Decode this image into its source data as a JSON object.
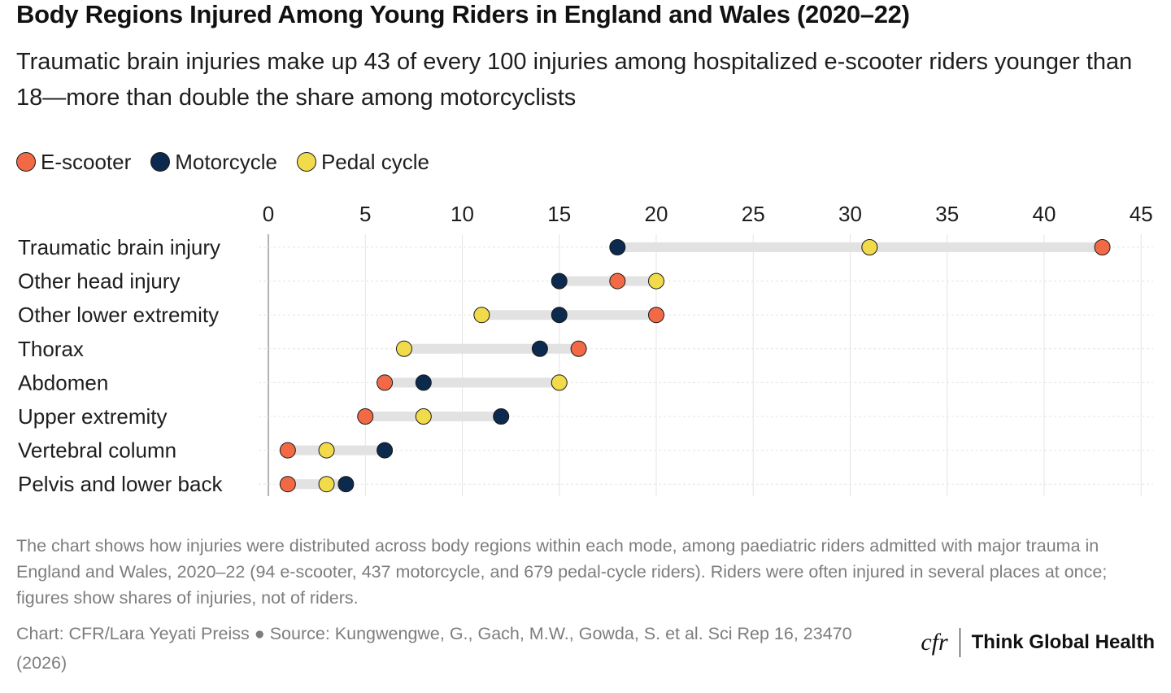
{
  "header": {
    "title": "Body Regions Injured Among Young Riders in England and Wales (2020–22)",
    "subtitle": "Traumatic brain injuries make up 43 of every 100 injuries among hospitalized e-scooter riders younger than 18—more than double the share among motorcyclists"
  },
  "colors": {
    "e_scooter": "#f26a45",
    "motorcycle": "#0c2a4d",
    "pedal_cycle": "#f1db4b",
    "range_bar": "#e2e2e2",
    "grid": "#e4e4e4",
    "axis": "#9a9a9a"
  },
  "legend": [
    {
      "key": "e_scooter",
      "label": "E-scooter"
    },
    {
      "key": "motorcycle",
      "label": "Motorcycle"
    },
    {
      "key": "pedal_cycle",
      "label": "Pedal cycle"
    }
  ],
  "chart_data": {
    "type": "scatter",
    "subtype": "dot-range",
    "orientation": "horizontal",
    "categories": [
      "Traumatic brain injury",
      "Other head injury",
      "Other lower extremity",
      "Thorax",
      "Abdomen",
      "Upper extremity",
      "Vertebral column",
      "Pelvis and lower back"
    ],
    "series": [
      {
        "key": "e_scooter",
        "name": "E-scooter",
        "values": [
          43,
          18,
          20,
          16,
          6,
          5,
          1,
          1
        ]
      },
      {
        "key": "motorcycle",
        "name": "Motorcycle",
        "values": [
          18,
          15,
          15,
          14,
          8,
          12,
          6,
          4
        ]
      },
      {
        "key": "pedal_cycle",
        "name": "Pedal cycle",
        "values": [
          31,
          20,
          11,
          7,
          15,
          8,
          3,
          3
        ]
      }
    ],
    "xlim": [
      0,
      45
    ],
    "xticks": [
      0,
      5,
      10,
      15,
      20,
      25,
      30,
      35,
      40,
      45
    ],
    "x_axis_position": "top",
    "grid": true,
    "legend_position": "top-left"
  },
  "footer": {
    "note": "The chart shows how injuries were distributed across body regions within each mode, among paediatric riders admitted with major trauma in England and Wales, 2020–22 (94 e-scooter, 437 motorcycle, and 679 pedal-cycle riders). Riders were often injured in several places at once; figures show shares of injuries, not of riders.",
    "source": "Chart: CFR/Lara Yeyati Preiss ● Source: Kungwengwe, G., Gach, M.W., Gowda, S. et al. Sci Rep 16, 23470 (2026)",
    "brand_logo": "cfr",
    "brand_name": "Think Global Health"
  }
}
